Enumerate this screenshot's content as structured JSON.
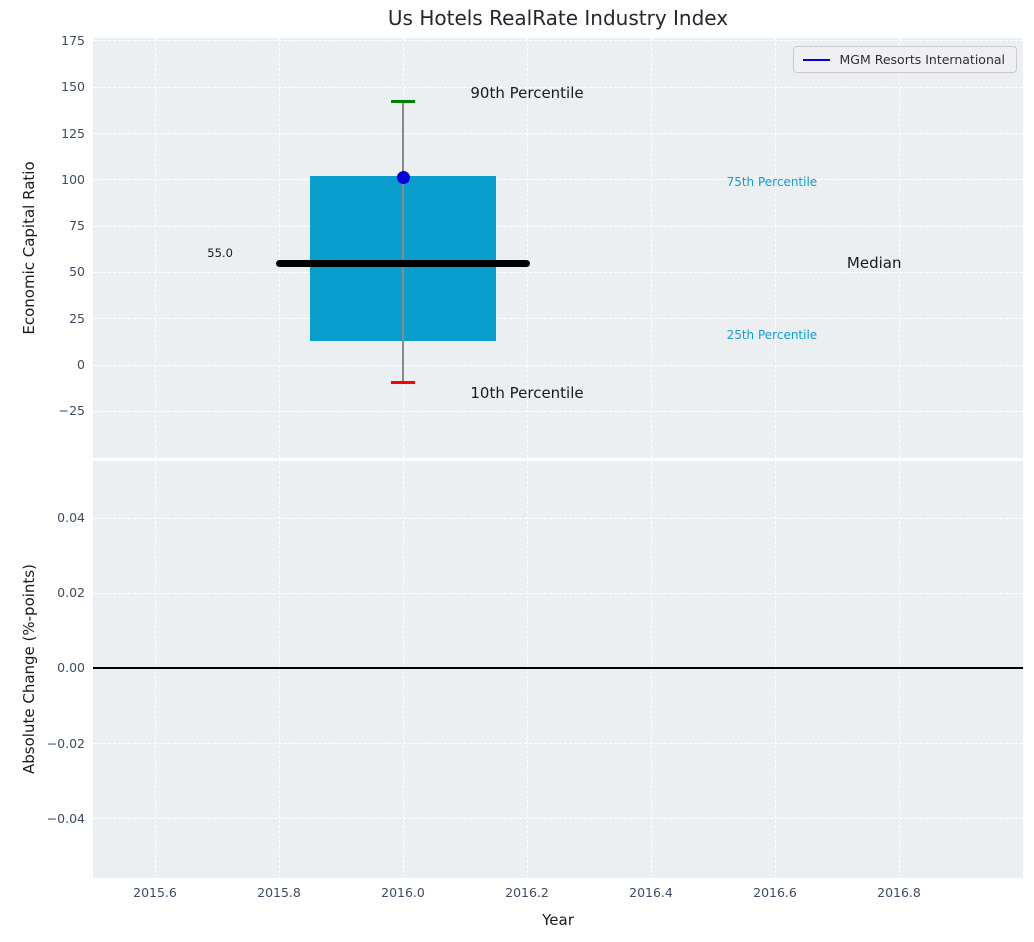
{
  "figure": {
    "title": "Us Hotels RealRate Industry Index"
  },
  "chart_data": [
    {
      "type": "box",
      "panel": "top",
      "title": "Us Hotels RealRate Industry Index",
      "xlabel": "Year",
      "ylabel": "Economic Capital Ratio",
      "xlim": [
        2015.5,
        2017.0
      ],
      "ylim": [
        -50.2,
        176.6
      ],
      "grid": true,
      "xticks": {
        "values": [
          2015.6,
          2015.8,
          2016.0,
          2016.2,
          2016.4,
          2016.6,
          2016.8
        ],
        "labels": [
          "2015.6",
          "2015.8",
          "2016.0",
          "2016.2",
          "2016.4",
          "2016.6",
          "2016.8"
        ]
      },
      "yticks": {
        "values": [
          175,
          150,
          125,
          100,
          75,
          50,
          25,
          0,
          -25
        ],
        "labels": [
          "175",
          "150",
          "125",
          "100",
          "75",
          "50",
          "25",
          "0",
          "−25"
        ]
      },
      "legend": {
        "position": "upper right",
        "entries": [
          {
            "label": "MGM Resorts International",
            "color": "#0000dd",
            "marker": "line"
          }
        ]
      },
      "boxplot": {
        "x": 2016.0,
        "p10": -9.5,
        "p25": 13.0,
        "median": 55.0,
        "p75": 102.0,
        "p90": 142.5,
        "median_label": "55.0",
        "box_width": 0.3,
        "median_line_width": 0.41,
        "cap_width": 0.038,
        "box_color": "#0a9ecd",
        "median_color": "#000000",
        "whisker_color": "#8a8a8a",
        "p90_cap_color": "#008000",
        "p10_cap_color": "#ff0000"
      },
      "company_marker": {
        "label": "MGM Resorts International",
        "x": 2016.0,
        "y": 101.5,
        "color": "#0000dd"
      },
      "annotations": [
        {
          "text": "90th Percentile",
          "x": 2016.2,
          "y": 147.0,
          "color": "#1a1a1a",
          "font_size": 15
        },
        {
          "text": "10th Percentile",
          "x": 2016.2,
          "y": -15.0,
          "color": "#1a1a1a",
          "font_size": 15
        },
        {
          "text": "75th Percentile",
          "x": 2016.595,
          "y": 99.0,
          "color": "#0f9ed0",
          "font_size": 12
        },
        {
          "text": "25th Percentile",
          "x": 2016.595,
          "y": 16.0,
          "color": "#0f9ed0",
          "font_size": 12
        },
        {
          "text": "Median",
          "x": 2016.76,
          "y": 55.0,
          "color": "#1a1a1a",
          "font_size": 15
        },
        {
          "text": "55.0",
          "x": 2015.705,
          "y": 60.5,
          "color": "#1a1a1a",
          "font_size": 11.5
        }
      ]
    },
    {
      "type": "line",
      "panel": "bottom",
      "xlabel": "Year",
      "ylabel": "Absolute Change (%-points)",
      "xlim": [
        2015.5,
        2017.0
      ],
      "ylim": [
        -0.0558,
        0.0552
      ],
      "grid": true,
      "xticks": {
        "values": [
          2015.6,
          2015.8,
          2016.0,
          2016.2,
          2016.4,
          2016.6,
          2016.8
        ],
        "labels": [
          "2015.6",
          "2015.8",
          "2016.0",
          "2016.2",
          "2016.4",
          "2016.6",
          "2016.8"
        ]
      },
      "yticks": {
        "values": [
          0.04,
          0.02,
          0.0,
          -0.02,
          -0.04
        ],
        "labels": [
          "0.04",
          "0.02",
          "0.00",
          "−0.02",
          "−0.04"
        ]
      },
      "zero_line": {
        "y": 0.0,
        "color": "#000000"
      },
      "series": []
    }
  ]
}
